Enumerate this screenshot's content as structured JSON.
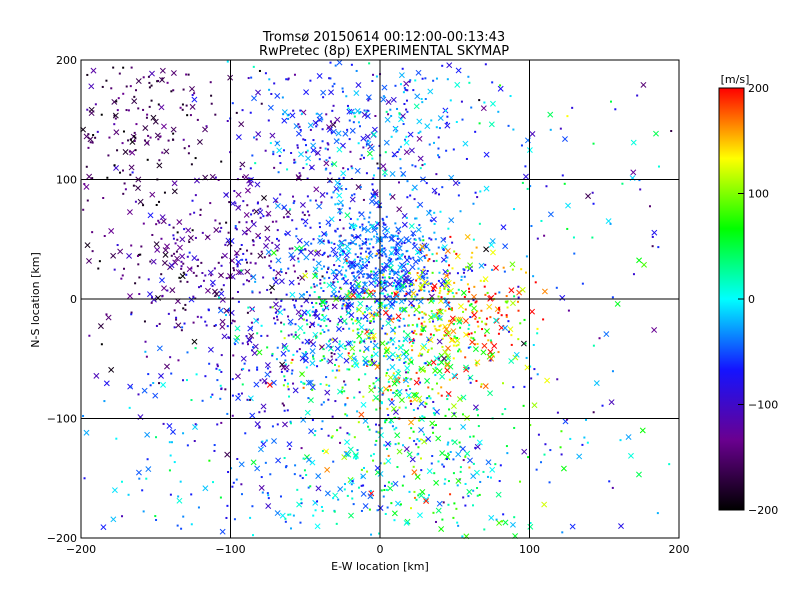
{
  "chart_data": {
    "type": "scatter",
    "title": "Tromsø 20150614 00:12:00-00:13:43",
    "subtitle": "RwPretec (8p) EXPERIMENTAL SKYMAP",
    "xlabel": "E-W location [km]",
    "ylabel": "N-S location [km]",
    "xlim": [
      -200,
      200
    ],
    "ylim": [
      -200,
      200
    ],
    "x_ticks": [
      -200,
      -100,
      0,
      100,
      200
    ],
    "y_ticks": [
      -200,
      -100,
      0,
      100,
      200
    ],
    "x_tick_labels": [
      "−200",
      "−100",
      "0",
      "100",
      "200"
    ],
    "y_tick_labels": [
      "−200",
      "−100",
      "0",
      "100",
      "200"
    ],
    "grid": true,
    "colorbar": {
      "label": "[m/s]",
      "range": [
        -200,
        200
      ],
      "ticks": [
        200,
        100,
        0,
        -100,
        -200
      ],
      "tick_labels": [
        "200",
        "100",
        "0",
        "−100",
        "−200"
      ],
      "colormap": [
        "#000000",
        "#6a0090",
        "#1414ff",
        "#00ffff",
        "#00ff00",
        "#ffff00",
        "#ff0000"
      ]
    },
    "markers": {
      "small": "dot",
      "large": "x"
    },
    "clusters": [
      {
        "cx": -160,
        "cy": 150,
        "sx": 30,
        "sy": 35,
        "n": 190,
        "v": -160,
        "vs": 25
      },
      {
        "cx": -140,
        "cy": 30,
        "sx": 40,
        "sy": 35,
        "n": 200,
        "v": -145,
        "vs": 30
      },
      {
        "cx": -75,
        "cy": 50,
        "sx": 35,
        "sy": 35,
        "n": 230,
        "v": -110,
        "vs": 30
      },
      {
        "cx": -35,
        "cy": 140,
        "sx": 30,
        "sy": 35,
        "n": 160,
        "v": -80,
        "vs": 40
      },
      {
        "cx": 0,
        "cy": 30,
        "sx": 25,
        "sy": 25,
        "n": 520,
        "v": -45,
        "vs": 25
      },
      {
        "cx": 0,
        "cy": 140,
        "sx": 40,
        "sy": 40,
        "n": 260,
        "v": -40,
        "vs": 40
      },
      {
        "cx": 50,
        "cy": -10,
        "sx": 25,
        "sy": 25,
        "n": 260,
        "v": 150,
        "vs": 50
      },
      {
        "cx": 10,
        "cy": -60,
        "sx": 35,
        "sy": 40,
        "n": 420,
        "v": 60,
        "vs": 80
      },
      {
        "cx": -30,
        "cy": -20,
        "sx": 30,
        "sy": 25,
        "n": 260,
        "v": -10,
        "vs": 60
      },
      {
        "cx": 30,
        "cy": -140,
        "sx": 40,
        "sy": 40,
        "n": 230,
        "v": 20,
        "vs": 60
      },
      {
        "cx": -60,
        "cy": -160,
        "sx": 55,
        "sy": 30,
        "n": 150,
        "v": -40,
        "vs": 40
      },
      {
        "cx": 120,
        "cy": 60,
        "sx": 50,
        "sy": 80,
        "n": 110,
        "v": -40,
        "vs": 70
      },
      {
        "cx": -150,
        "cy": -120,
        "sx": 40,
        "sy": 60,
        "n": 80,
        "v": -40,
        "vs": 40
      },
      {
        "cx": -80,
        "cy": -60,
        "sx": 30,
        "sy": 30,
        "n": 140,
        "v": -80,
        "vs": 40
      },
      {
        "cx": 150,
        "cy": -130,
        "sx": 40,
        "sy": 50,
        "n": 50,
        "v": -20,
        "vs": 60
      }
    ]
  }
}
